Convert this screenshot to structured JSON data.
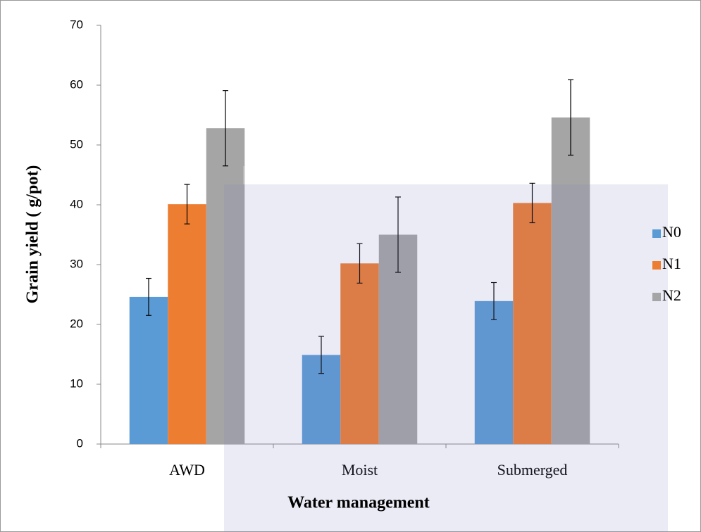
{
  "chart_data": {
    "type": "bar",
    "x_label": "Water management",
    "y_label": "Grain yield ( g/pot)",
    "categories": [
      "AWD",
      "Moist",
      "Submerged"
    ],
    "series": [
      {
        "name": "N0",
        "color": "#5b9bd5",
        "values": [
          24.6,
          14.9,
          23.9
        ],
        "errors": [
          3.1,
          3.1,
          3.1
        ]
      },
      {
        "name": "N1",
        "color": "#ed7d31",
        "values": [
          40.1,
          30.2,
          40.3
        ],
        "errors": [
          3.3,
          3.3,
          3.3
        ]
      },
      {
        "name": "N2",
        "color": "#a5a5a5",
        "values": [
          52.8,
          35.0,
          54.6
        ],
        "errors": [
          6.3,
          6.3,
          6.3
        ]
      }
    ],
    "ylim": [
      0,
      70
    ],
    "yticks": [
      0,
      10,
      20,
      30,
      40,
      50,
      60,
      70
    ],
    "grid": false,
    "legend": "right"
  }
}
